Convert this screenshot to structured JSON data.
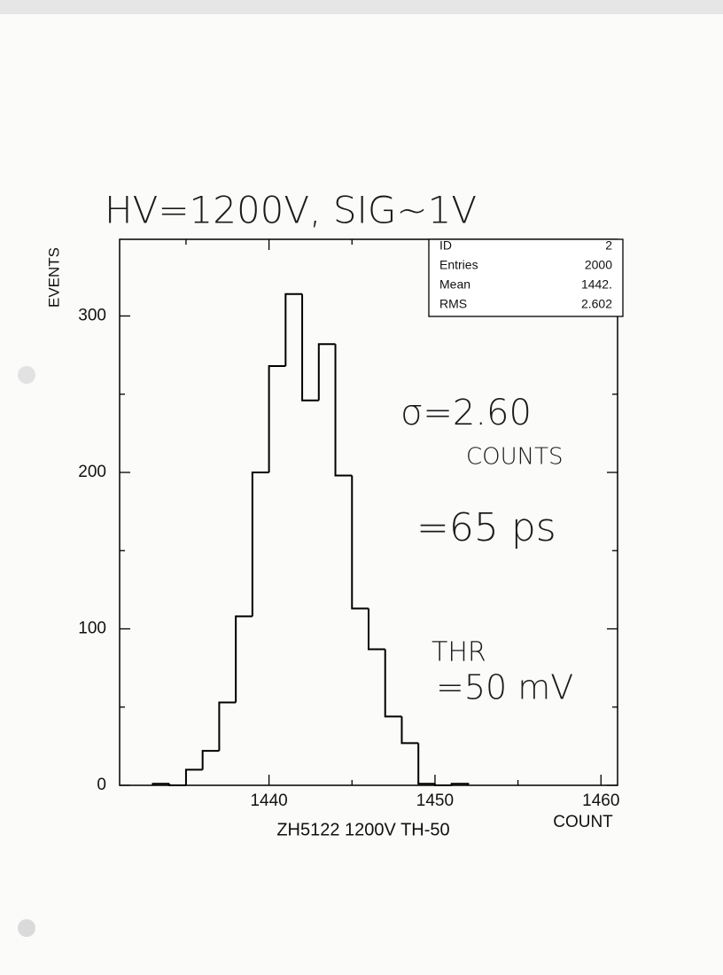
{
  "chart_data": {
    "type": "histogram",
    "title": "ZH5122 1200V TH-50",
    "x_label": "COUNT",
    "y_label": "EVENTS",
    "bins": [
      1433,
      1434,
      1435,
      1436,
      1437,
      1438,
      1439,
      1440,
      1441,
      1442,
      1443,
      1444,
      1445,
      1446,
      1447,
      1448,
      1449,
      1450,
      1451,
      1452
    ],
    "counts": [
      1,
      0,
      10,
      22,
      53,
      108,
      200,
      268,
      314,
      246,
      282,
      198,
      113,
      87,
      44,
      27,
      1,
      0,
      1
    ],
    "color": "#000000",
    "xlim": [
      1431,
      1461
    ],
    "ylim": [
      0,
      349
    ],
    "xticks": [
      1440,
      1450,
      1460
    ],
    "yticks": [
      0,
      100,
      200,
      300
    ],
    "xminorticks": [
      1435,
      1445,
      1455
    ],
    "yminorticks": [
      50,
      150,
      250
    ],
    "stats": [
      [
        "ID",
        "2"
      ],
      [
        "Entries",
        "2000"
      ],
      [
        "Mean",
        "1442."
      ],
      [
        "RMS",
        "2.602"
      ]
    ],
    "annotations": [
      "HV=1200V, SIG~1V",
      "σ=2.60",
      "COUNTS",
      "=65 ps",
      "THR",
      "=50 mV"
    ]
  }
}
